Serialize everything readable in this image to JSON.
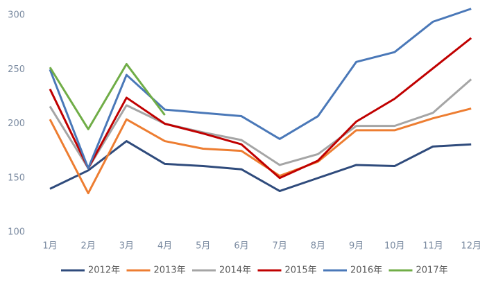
{
  "chart_data": {
    "type": "line",
    "categories": [
      "1月",
      "2月",
      "3月",
      "4月",
      "5月",
      "6月",
      "7月",
      "8月",
      "9月",
      "10月",
      "11月",
      "12月"
    ],
    "series": [
      {
        "name": "2012年",
        "color": "#2f4b7c",
        "values": [
          140,
          157,
          184,
          163,
          161,
          158,
          138,
          150,
          162,
          161,
          179,
          181
        ]
      },
      {
        "name": "2013年",
        "color": "#ed7d31",
        "values": [
          204,
          136,
          204,
          184,
          177,
          175,
          152,
          165,
          194,
          194,
          205,
          214
        ]
      },
      {
        "name": "2014年",
        "color": "#a5a5a5",
        "values": [
          216,
          159,
          217,
          200,
          192,
          185,
          162,
          172,
          198,
          198,
          210,
          241
        ]
      },
      {
        "name": "2015年",
        "color": "#c00000",
        "values": [
          232,
          159,
          224,
          200,
          191,
          181,
          150,
          166,
          202,
          223,
          251,
          279
        ]
      },
      {
        "name": "2016年",
        "color": "#4a78b8",
        "values": [
          250,
          159,
          245,
          213,
          210,
          207,
          186,
          207,
          257,
          266,
          294,
          306
        ]
      },
      {
        "name": "2017年",
        "color": "#70ad47",
        "values": [
          252,
          195,
          255,
          208,
          null,
          null,
          null,
          null,
          null,
          null,
          null,
          null
        ]
      }
    ],
    "ylim": [
      100,
      300
    ],
    "yticks": [
      100,
      150,
      200,
      250,
      300
    ],
    "grid": false,
    "legend": "bottom"
  }
}
